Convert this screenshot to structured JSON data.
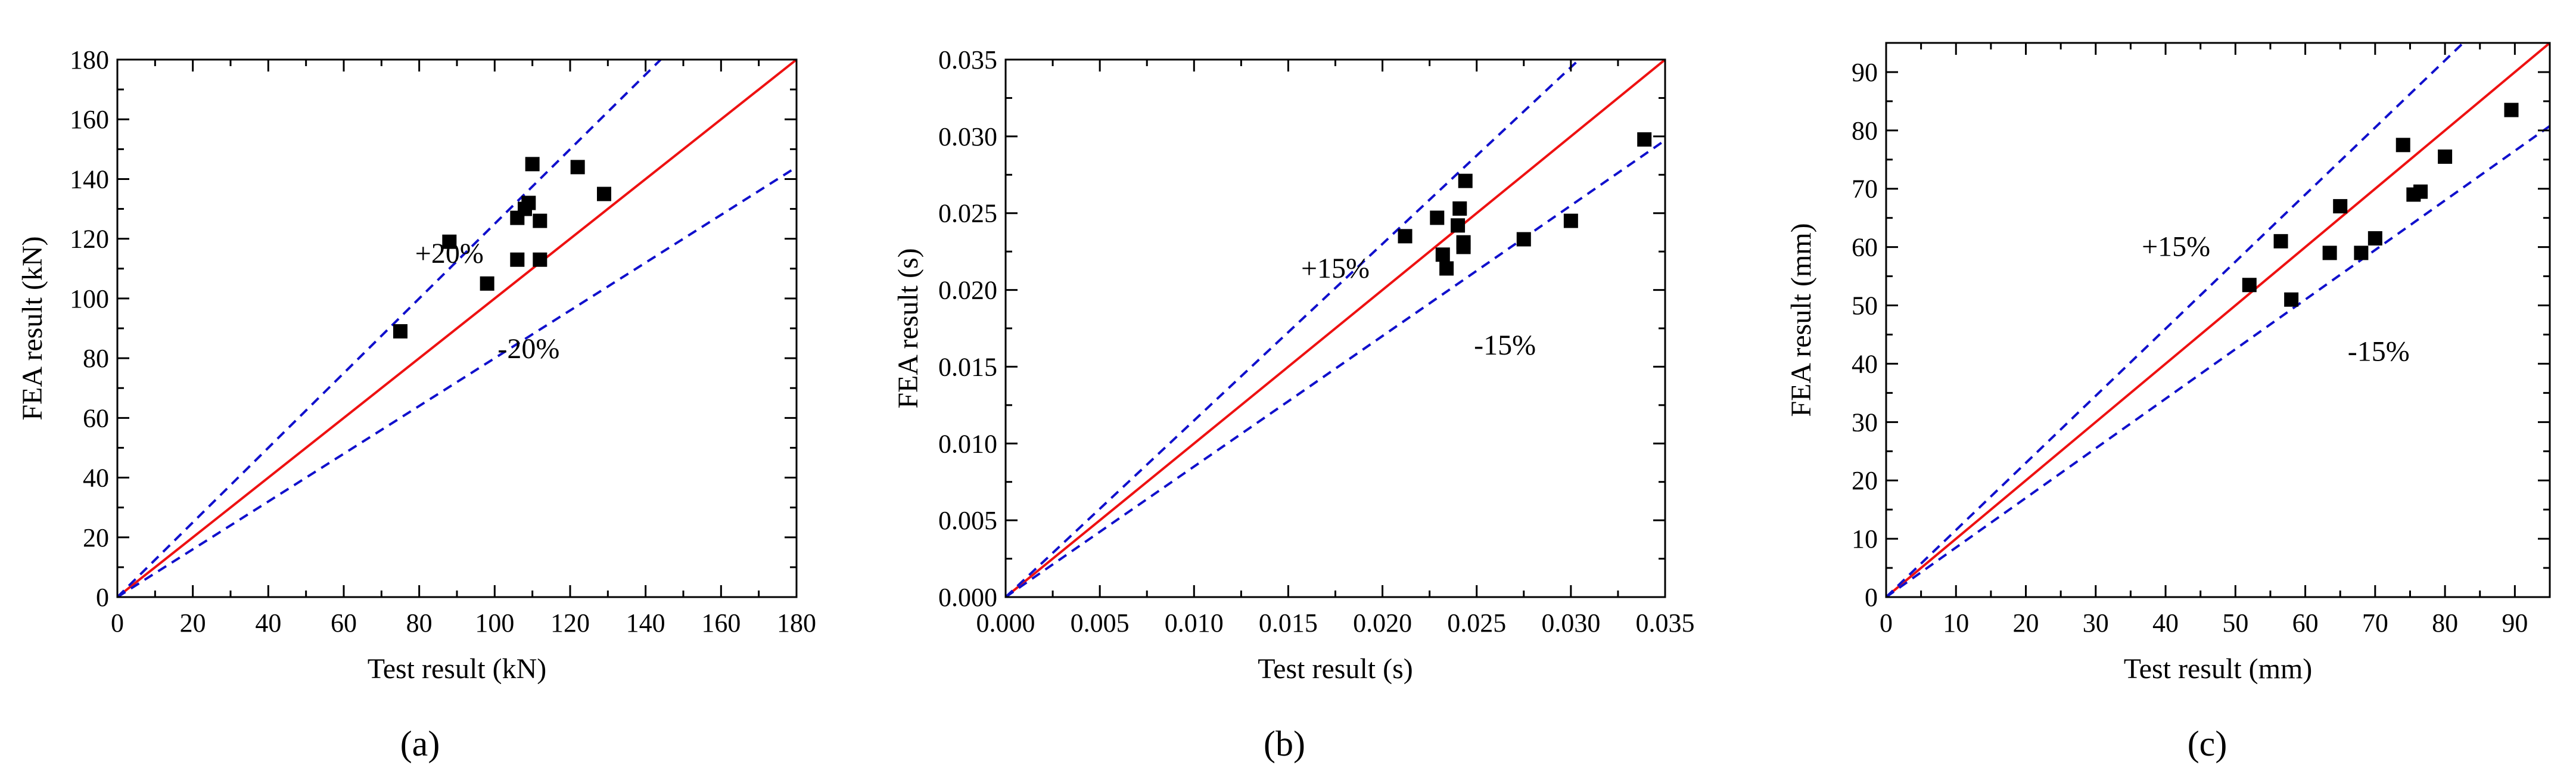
{
  "chart_data": [
    {
      "type": "scatter",
      "panel_label": "(a)",
      "xlabel": "Test result (kN)",
      "ylabel": "FEA result (kN)",
      "xlim": [
        0,
        180
      ],
      "ylim": [
        0,
        180
      ],
      "xticks": [
        0,
        20,
        40,
        60,
        80,
        100,
        120,
        140,
        160,
        180
      ],
      "yticks": [
        0,
        20,
        40,
        60,
        80,
        100,
        120,
        140,
        160,
        180
      ],
      "tick_labels_x": [
        "0",
        "20",
        "40",
        "60",
        "80",
        "100",
        "120",
        "140",
        "160",
        "180"
      ],
      "tick_labels_y": [
        "0",
        "20",
        "40",
        "60",
        "80",
        "100",
        "120",
        "140",
        "160",
        "180"
      ],
      "points": [
        [
          75,
          89
        ],
        [
          88,
          119
        ],
        [
          98,
          105
        ],
        [
          106,
          113
        ],
        [
          106,
          127
        ],
        [
          108,
          130
        ],
        [
          109,
          132
        ],
        [
          110,
          145
        ],
        [
          112,
          126
        ],
        [
          112,
          113
        ],
        [
          122,
          144
        ],
        [
          129,
          135
        ]
      ],
      "reference_line": {
        "slope": 1,
        "color": "#ee1111"
      },
      "bounds": [
        {
          "slope": 1.25,
          "label": "+20%",
          "label_at": [
            88,
            112
          ]
        },
        {
          "slope": 0.8,
          "label": "-20%",
          "label_at": [
            109,
            80
          ]
        }
      ],
      "bound_color": "#1010cc"
    },
    {
      "type": "scatter",
      "panel_label": "(b)",
      "xlabel": "Test result (s)",
      "ylabel": "FEA result (s)",
      "xlim": [
        0,
        0.035
      ],
      "ylim": [
        0,
        0.035
      ],
      "xticks": [
        0,
        0.005,
        0.01,
        0.015,
        0.02,
        0.025,
        0.03,
        0.035
      ],
      "yticks": [
        0,
        0.005,
        0.01,
        0.015,
        0.02,
        0.025,
        0.03,
        0.035
      ],
      "tick_labels_x": [
        "0.000",
        "0.005",
        "0.010",
        "0.015",
        "0.020",
        "0.025",
        "0.030",
        "0.035"
      ],
      "tick_labels_y": [
        "0.000",
        "0.005",
        "0.010",
        "0.015",
        "0.020",
        "0.025",
        "0.030",
        "0.035"
      ],
      "points": [
        [
          0.0212,
          0.0235
        ],
        [
          0.0229,
          0.0247
        ],
        [
          0.0232,
          0.0223
        ],
        [
          0.0234,
          0.0214
        ],
        [
          0.024,
          0.0242
        ],
        [
          0.0241,
          0.0253
        ],
        [
          0.0243,
          0.0228
        ],
        [
          0.0243,
          0.0231
        ],
        [
          0.0244,
          0.0271
        ],
        [
          0.0275,
          0.0233
        ],
        [
          0.03,
          0.0245
        ],
        [
          0.0339,
          0.0298
        ]
      ],
      "reference_line": {
        "slope": 1,
        "color": "#ee1111"
      },
      "bounds": [
        {
          "slope": 1.15,
          "label": "+15%",
          "label_at": [
            0.0175,
            0.0208
          ]
        },
        {
          "slope": 0.85,
          "label": "-15%",
          "label_at": [
            0.0265,
            0.0158
          ]
        }
      ],
      "bound_color": "#1010cc"
    },
    {
      "type": "scatter",
      "panel_label": "(c)",
      "xlabel": "Test result (mm)",
      "ylabel": "FEA result (mm)",
      "xlim": [
        0,
        95
      ],
      "ylim": [
        0,
        95
      ],
      "xticks": [
        0,
        10,
        20,
        30,
        40,
        50,
        60,
        70,
        80,
        90
      ],
      "yticks": [
        0,
        10,
        20,
        30,
        40,
        50,
        60,
        70,
        80,
        90
      ],
      "tick_labels_x": [
        "0",
        "10",
        "20",
        "30",
        "40",
        "50",
        "60",
        "70",
        "80",
        "90"
      ],
      "tick_labels_y": [
        "0",
        "10",
        "20",
        "30",
        "40",
        "50",
        "60",
        "70",
        "80",
        "90"
      ],
      "points": [
        [
          52,
          53.5
        ],
        [
          56.5,
          61
        ],
        [
          58,
          51
        ],
        [
          63.5,
          59
        ],
        [
          65,
          67
        ],
        [
          68,
          59
        ],
        [
          70,
          61.5
        ],
        [
          74,
          77.5
        ],
        [
          75.5,
          69
        ],
        [
          76.5,
          69.5
        ],
        [
          80,
          75.5
        ],
        [
          89.5,
          83.5
        ]
      ],
      "reference_line": {
        "slope": 1,
        "color": "#ee1111"
      },
      "bounds": [
        {
          "slope": 1.15,
          "label": "+15%",
          "label_at": [
            41.5,
            58.5
          ]
        },
        {
          "slope": 0.85,
          "label": "-15%",
          "label_at": [
            70.5,
            40.5
          ]
        }
      ],
      "bound_color": "#1010cc"
    }
  ]
}
